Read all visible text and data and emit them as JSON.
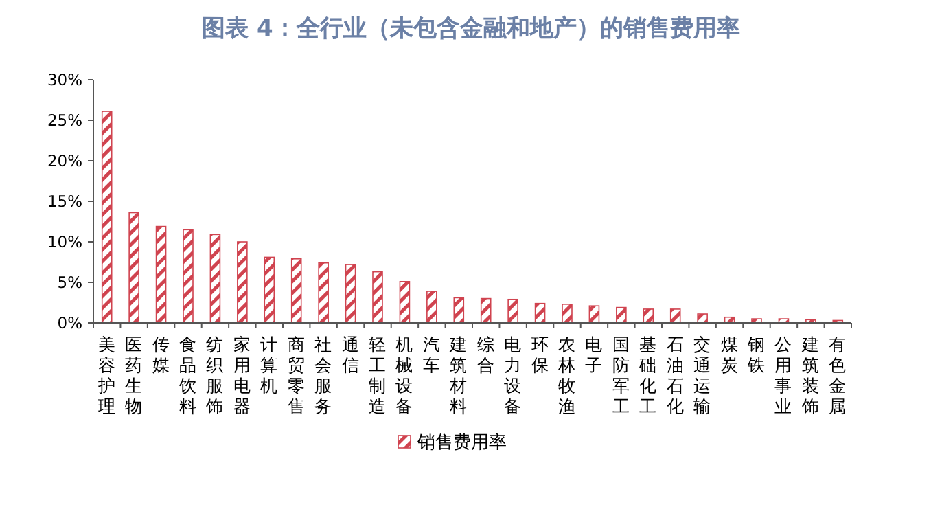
{
  "chart_data": {
    "type": "bar",
    "title": "图表 4：全行业（未包含金融和地产）的销售费用率",
    "categories": [
      "美容护理",
      "医药生物",
      "传媒",
      "食品饮料",
      "纺织服饰",
      "家用电器",
      "计算机",
      "商贸零售",
      "社会服务",
      "通信",
      "轻工制造",
      "机械设备",
      "汽车",
      "建筑材料",
      "综合",
      "电力设备",
      "环保",
      "农林牧渔",
      "电子",
      "国防军工",
      "基础化工",
      "石油石化",
      "交通运输",
      "煤炭",
      "钢铁",
      "公用事业",
      "建筑装饰",
      "有色金属"
    ],
    "series": [
      {
        "name": "销售费用率",
        "color": "#d0434f",
        "values": [
          26.1,
          13.6,
          11.9,
          11.5,
          10.9,
          10.0,
          8.1,
          7.9,
          7.4,
          7.2,
          6.3,
          5.1,
          3.9,
          3.1,
          3.0,
          2.9,
          2.4,
          2.3,
          2.1,
          1.9,
          1.7,
          1.7,
          1.1,
          0.7,
          0.5,
          0.5,
          0.4,
          0.3
        ]
      }
    ],
    "ylim": [
      0,
      30
    ],
    "yticks": [
      {
        "value": 0,
        "label": "0%"
      },
      {
        "value": 5,
        "label": "5%"
      },
      {
        "value": 10,
        "label": "10%"
      },
      {
        "value": 15,
        "label": "15%"
      },
      {
        "value": 20,
        "label": "20%"
      },
      {
        "value": 25,
        "label": "25%"
      },
      {
        "value": 30,
        "label": "30%"
      }
    ],
    "grid": false,
    "legend": "bottom"
  }
}
